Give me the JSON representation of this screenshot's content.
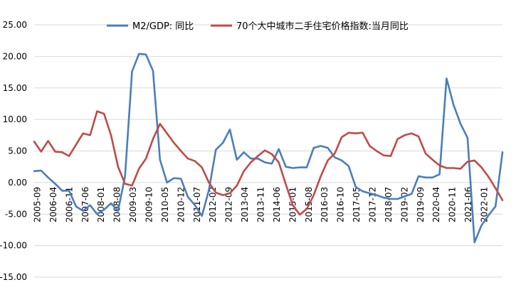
{
  "chart_data": {
    "type": "line",
    "title": "",
    "xlabel": "",
    "ylabel": "",
    "ylim": [
      -15,
      25
    ],
    "y_ticks": [
      "25.00",
      "20.00",
      "15.00",
      "10.00",
      "5.00",
      "0.00",
      "-5.00",
      "-10.00",
      "-15.00"
    ],
    "y_tick_values": [
      25,
      20,
      15,
      10,
      5,
      0,
      -5,
      -10,
      -15
    ],
    "grid": "horizontal",
    "legend_position": "top",
    "x_tick_labels": [
      "2005-09",
      "2006-04",
      "2006-11",
      "2007-06",
      "2008-01",
      "2008-08",
      "2009-03",
      "2009-10",
      "2010-05",
      "2010-12",
      "2011-07",
      "2012-02",
      "2012-09",
      "2013-04",
      "2013-11",
      "2014-06",
      "2015-01",
      "2015-08",
      "2016-03",
      "2016-10",
      "2017-05",
      "2017-12",
      "2018-07",
      "2019-02",
      "2019-09",
      "2020-04",
      "2020-11",
      "2021-06",
      "2022-01"
    ],
    "x": [
      "2005-09",
      "2005-12",
      "2006-03",
      "2006-06",
      "2006-09",
      "2006-12",
      "2007-03",
      "2007-06",
      "2007-09",
      "2007-12",
      "2008-03",
      "2008-06",
      "2008-09",
      "2008-12",
      "2009-03",
      "2009-06",
      "2009-09",
      "2009-12",
      "2010-03",
      "2010-06",
      "2010-09",
      "2010-12",
      "2011-03",
      "2011-06",
      "2011-09",
      "2011-12",
      "2012-03",
      "2012-06",
      "2012-09",
      "2012-12",
      "2013-03",
      "2013-06",
      "2013-09",
      "2013-12",
      "2014-03",
      "2014-06",
      "2014-09",
      "2014-12",
      "2015-03",
      "2015-06",
      "2015-09",
      "2015-12",
      "2016-03",
      "2016-06",
      "2016-09",
      "2016-12",
      "2017-03",
      "2017-06",
      "2017-09",
      "2017-12",
      "2018-03",
      "2018-06",
      "2018-09",
      "2018-12",
      "2019-03",
      "2019-06",
      "2019-09",
      "2019-12",
      "2020-03",
      "2020-06",
      "2020-09",
      "2020-12",
      "2021-03",
      "2021-06",
      "2021-09",
      "2021-12",
      "2022-03",
      "2022-06"
    ],
    "series": [
      {
        "name": "M2/GDP: 同比",
        "color": "#4a7ebb",
        "values": [
          1.8,
          1.9,
          0.8,
          -0.2,
          -1.3,
          -1.3,
          -3.8,
          -4.5,
          -3.6,
          -5.0,
          -4.3,
          -3.3,
          -4.5,
          1.0,
          17.6,
          20.4,
          20.3,
          17.7,
          3.6,
          0.0,
          0.7,
          0.6,
          -2.3,
          -3.6,
          -5.3,
          -1.2,
          5.2,
          6.3,
          8.4,
          3.6,
          4.8,
          3.8,
          3.8,
          3.2,
          3.0,
          5.3,
          2.5,
          2.3,
          2.4,
          2.4,
          5.5,
          5.8,
          5.5,
          4.0,
          3.5,
          2.6,
          -0.7,
          -1.4,
          -1.7,
          -2.0,
          -2.4,
          -2.6,
          -2.6,
          -2.2,
          -1.8,
          1.0,
          0.8,
          0.8,
          1.3,
          16.5,
          12.3,
          9.3,
          7.1,
          -9.5,
          -6.8,
          -5.2,
          -3.8,
          4.8
        ]
      },
      {
        "name": "70个大中城市二手住宅价格指数:当月同比",
        "color": "#be4b48",
        "values": [
          6.5,
          4.9,
          6.6,
          4.9,
          4.8,
          4.2,
          6.0,
          7.8,
          7.5,
          11.3,
          10.9,
          7.5,
          2.5,
          -0.2,
          -0.5,
          2.2,
          3.8,
          6.9,
          9.3,
          7.8,
          6.3,
          5.0,
          3.8,
          3.4,
          2.4,
          0.0,
          -1.6,
          -2.0,
          -1.7,
          -0.5,
          1.8,
          3.2,
          4.2,
          5.1,
          4.5,
          3.2,
          -0.3,
          -3.6,
          -5.1,
          -4.2,
          -2.0,
          1.0,
          3.5,
          4.6,
          7.2,
          7.9,
          7.8,
          7.9,
          5.8,
          5.0,
          4.3,
          4.2,
          6.9,
          7.5,
          7.8,
          7.3,
          4.6,
          3.6,
          2.7,
          2.3,
          2.3,
          2.2,
          3.3,
          3.5,
          2.4,
          0.9,
          -0.9,
          -2.8
        ]
      }
    ]
  }
}
